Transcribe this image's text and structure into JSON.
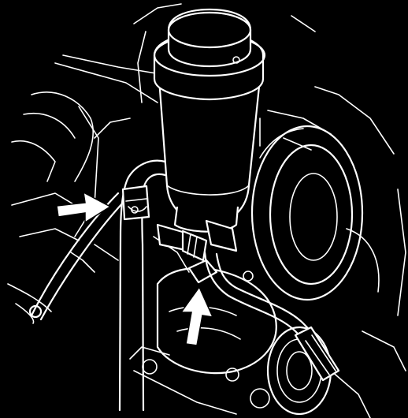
{
  "diagram": {
    "background_color": "#000000",
    "line_color": "#ffffff",
    "components": [
      "reservoir-cap",
      "reservoir-body",
      "return-hose",
      "hose-clamp",
      "outlet-fitting",
      "feed-pipe",
      "pulley",
      "pump-body"
    ],
    "arrows": [
      {
        "name": "hose-clamp-arrow",
        "direction": "right"
      },
      {
        "name": "fitting-arrow",
        "direction": "up"
      }
    ]
  }
}
